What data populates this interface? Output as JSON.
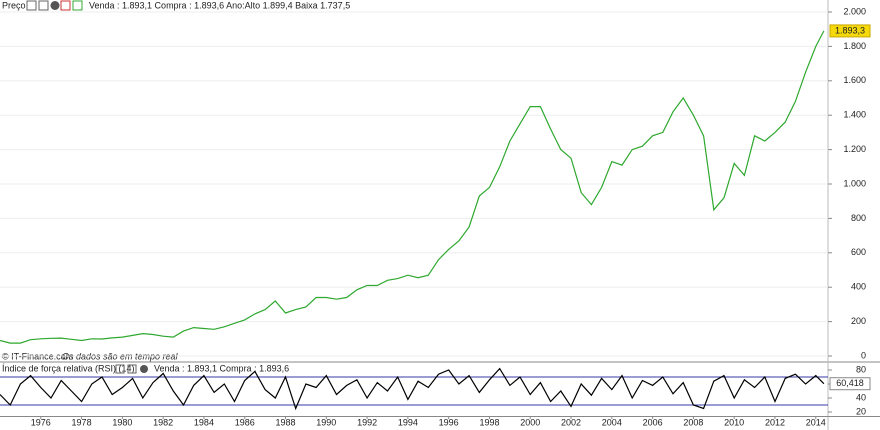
{
  "chart_data": [
    {
      "type": "line",
      "title": "Preço",
      "quote": "Venda : 1.893,1 Compra : 1.893,6 Ano:Alto 1.899,4 Baixa 1.737,5",
      "source": "© IT-Finance.com",
      "source_note": "Os dados são em tempo real",
      "last_value_label": "1.893,3",
      "color": "#2ea82e",
      "grid": true,
      "x": [
        1974,
        1974.5,
        1975,
        1975.5,
        1976,
        1976.5,
        1977,
        1977.5,
        1978,
        1978.5,
        1979,
        1979.5,
        1980,
        1980.5,
        1981,
        1981.5,
        1982,
        1982.5,
        1983,
        1983.5,
        1984,
        1984.5,
        1985,
        1985.5,
        1986,
        1986.5,
        1987,
        1987.5,
        1988,
        1988.5,
        1989,
        1989.5,
        1990,
        1990.5,
        1991,
        1991.5,
        1992,
        1992.5,
        1993,
        1993.5,
        1994,
        1994.5,
        1995,
        1995.5,
        1996,
        1996.5,
        1997,
        1997.5,
        1998,
        1998.5,
        1999,
        1999.5,
        2000,
        2000.5,
        2001,
        2001.5,
        2002,
        2002.5,
        2003,
        2003.5,
        2004,
        2004.5,
        2005,
        2005.5,
        2006,
        2006.5,
        2007,
        2007.5,
        2008,
        2008.5,
        2009,
        2009.5,
        2010,
        2010.5,
        2011,
        2011.5,
        2012,
        2012.5,
        2013,
        2013.5,
        2014,
        2014.4
      ],
      "values": [
        90,
        75,
        75,
        95,
        100,
        103,
        104,
        97,
        90,
        100,
        99,
        105,
        110,
        120,
        130,
        125,
        115,
        110,
        145,
        165,
        160,
        155,
        170,
        190,
        210,
        245,
        270,
        320,
        250,
        270,
        285,
        340,
        340,
        330,
        340,
        385,
        410,
        410,
        440,
        450,
        470,
        455,
        470,
        560,
        620,
        670,
        750,
        930,
        980,
        1100,
        1250,
        1350,
        1450,
        1450,
        1320,
        1200,
        1150,
        950,
        880,
        980,
        1130,
        1110,
        1200,
        1220,
        1280,
        1300,
        1420,
        1500,
        1400,
        1280,
        850,
        920,
        1120,
        1050,
        1280,
        1250,
        1300,
        1360,
        1480,
        1650,
        1800,
        1890
      ],
      "xlim": [
        1974,
        2014.6
      ],
      "ylim": [
        0,
        2000
      ],
      "yticks": [
        0,
        200,
        400,
        600,
        800,
        {
          "value": 1000,
          "label": "1.000"
        },
        {
          "value": 1200,
          "label": "1.200"
        },
        {
          "value": 1400,
          "label": "1.400"
        },
        {
          "value": 1600,
          "label": "1.600"
        },
        {
          "value": 1800,
          "label": "1.800"
        },
        {
          "value": 2000,
          "label": "2.000"
        }
      ]
    },
    {
      "type": "line",
      "title": "Índice de força relativa (RSI) (14)",
      "quote": "Venda : 1.893,1 Compra : 1.893,6",
      "last_value_label": "60,418",
      "color": "#000000",
      "reference_lines": [
        30,
        70
      ],
      "reference_color": "#3a3aa8",
      "x": [
        1974,
        1974.5,
        1975,
        1975.5,
        1976,
        1976.5,
        1977,
        1977.5,
        1978,
        1978.5,
        1979,
        1979.5,
        1980,
        1980.5,
        1981,
        1981.5,
        1982,
        1982.5,
        1983,
        1983.5,
        1984,
        1984.5,
        1985,
        1985.5,
        1986,
        1986.5,
        1987,
        1987.5,
        1988,
        1988.5,
        1989,
        1989.5,
        1990,
        1990.5,
        1991,
        1991.5,
        1992,
        1992.5,
        1993,
        1993.5,
        1994,
        1994.5,
        1995,
        1995.5,
        1996,
        1996.5,
        1997,
        1997.5,
        1998,
        1998.5,
        1999,
        1999.5,
        2000,
        2000.5,
        2001,
        2001.5,
        2002,
        2002.5,
        2003,
        2003.5,
        2004,
        2004.5,
        2005,
        2005.5,
        2006,
        2006.5,
        2007,
        2007.5,
        2008,
        2008.5,
        2009,
        2009.5,
        2010,
        2010.5,
        2011,
        2011.5,
        2012,
        2012.5,
        2013,
        2013.5,
        2014,
        2014.4
      ],
      "values": [
        45,
        30,
        60,
        72,
        55,
        40,
        65,
        50,
        35,
        60,
        70,
        45,
        55,
        68,
        40,
        62,
        75,
        50,
        30,
        58,
        72,
        48,
        60,
        35,
        65,
        78,
        52,
        40,
        70,
        25,
        60,
        55,
        72,
        45,
        58,
        66,
        40,
        62,
        50,
        70,
        38,
        64,
        55,
        74,
        80,
        60,
        72,
        48,
        66,
        82,
        58,
        70,
        45,
        62,
        35,
        50,
        28,
        60,
        44,
        68,
        52,
        72,
        40,
        65,
        58,
        70,
        46,
        62,
        30,
        25,
        64,
        72,
        40,
        66,
        55,
        70,
        35,
        68,
        74,
        60,
        72,
        60.4
      ],
      "xlim": [
        1974,
        2014.6
      ],
      "ylim": [
        14,
        88
      ],
      "yticks": [
        20,
        40,
        60,
        80
      ],
      "xticks": [
        1976,
        1978,
        1980,
        1982,
        1984,
        1986,
        1988,
        1990,
        1992,
        1994,
        1996,
        1998,
        2000,
        2002,
        2004,
        2006,
        2008,
        2010,
        2012,
        2014
      ]
    }
  ]
}
